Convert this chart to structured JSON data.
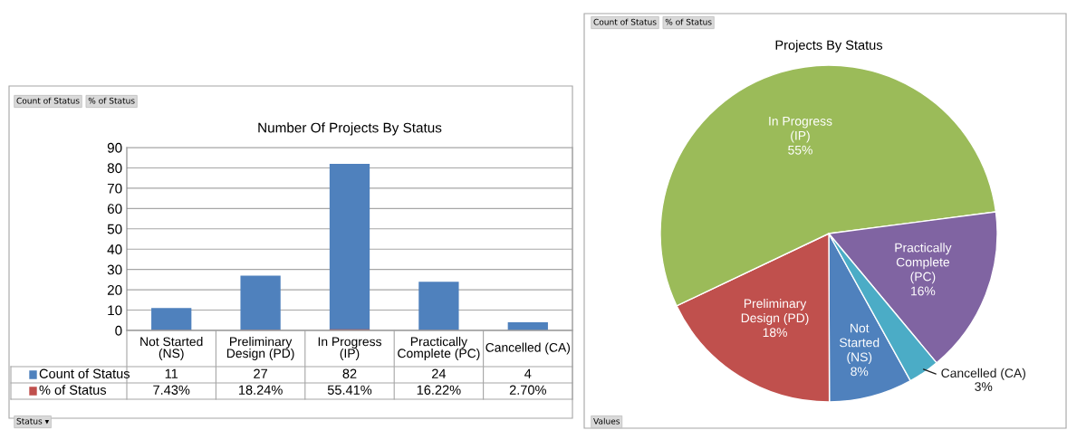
{
  "chart_data": [
    {
      "type": "bar",
      "title": "Number Of Projects By Status",
      "categories": [
        "Not Started (NS)",
        "Preliminary Design (PD)",
        "In Progress (IP)",
        "Practically Complete (PC)",
        "Cancelled (CA)"
      ],
      "series": [
        {
          "name": "Count of Status",
          "color": "#4f81bd",
          "values": [
            11,
            27,
            82,
            24,
            4
          ],
          "value_labels": [
            "11",
            "27",
            "82",
            "24",
            "4"
          ]
        },
        {
          "name": "% of Status",
          "color": "#c0504d",
          "values": [
            0.0743,
            0.1824,
            0.5541,
            0.1622,
            0.027
          ],
          "value_labels": [
            "7.43%",
            "18.24%",
            "55.41%",
            "16.22%",
            "2.70%"
          ]
        }
      ],
      "ylim": [
        0,
        90
      ],
      "yticks": [
        0,
        10,
        20,
        30,
        40,
        50,
        60,
        70,
        80,
        90
      ],
      "grid": "y",
      "legend": "bottom",
      "annotations": [
        "Count of Status",
        "% of Status",
        "Status ▾"
      ]
    },
    {
      "type": "pie",
      "title": "Projects By Status",
      "categories": [
        "Not Started (NS)",
        "Preliminary Design (PD)",
        "In Progress (IP)",
        "Practically Complete (PC)",
        "Cancelled (CA)"
      ],
      "values": [
        8,
        18,
        55,
        16,
        3
      ],
      "value_labels": [
        "8%",
        "18%",
        "55%",
        "16%",
        "3%"
      ],
      "colors": [
        "#4f81bd",
        "#c0504d",
        "#9bbb59",
        "#8064a2",
        "#4bacc6"
      ],
      "annotations": [
        "Count of Status",
        "% of Status",
        "Values"
      ]
    }
  ]
}
